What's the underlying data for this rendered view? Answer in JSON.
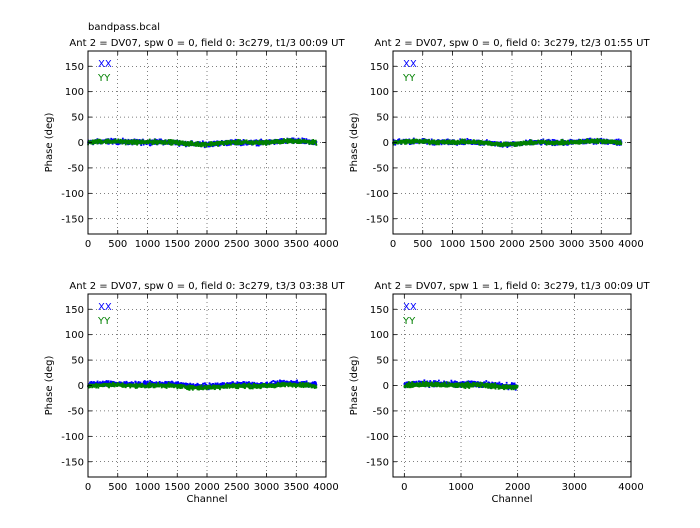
{
  "figure_title": "bandpass.bcal",
  "chart_data": [
    {
      "type": "scatter",
      "title": "Ant 2 = DV07,  spw 0 = 0,  field 0: 3c279,  t1/3  00:09 UT",
      "xlabel": "",
      "ylabel": "Phase (deg)",
      "xlim": [
        0,
        4000
      ],
      "ylim": [
        -180,
        180
      ],
      "xticks": [
        0,
        500,
        1000,
        1500,
        2000,
        2500,
        3000,
        3500,
        4000
      ],
      "yticks": [
        -150,
        -100,
        -50,
        0,
        50,
        100,
        150
      ],
      "grid": true,
      "legend_position": "top-left",
      "series": [
        {
          "name": "XX",
          "color": "#0000ff",
          "x_range": [
            0,
            3840
          ],
          "center": 0,
          "spread": 7
        },
        {
          "name": "YY",
          "color": "#008000",
          "x_range": [
            0,
            3840
          ],
          "center": 0,
          "spread": 6
        }
      ]
    },
    {
      "type": "scatter",
      "title": "Ant 2 = DV07,  spw 0 = 0,  field 0: 3c279,  t2/3  01:55 UT",
      "xlabel": "",
      "ylabel": "Phase (deg)",
      "xlim": [
        0,
        4000
      ],
      "ylim": [
        -180,
        180
      ],
      "xticks": [
        0,
        500,
        1000,
        1500,
        2000,
        2500,
        3000,
        3500,
        4000
      ],
      "yticks": [
        -150,
        -100,
        -50,
        0,
        50,
        100,
        150
      ],
      "grid": true,
      "legend_position": "top-left",
      "series": [
        {
          "name": "XX",
          "color": "#0000ff",
          "x_range": [
            0,
            3840
          ],
          "center": 0,
          "spread": 7
        },
        {
          "name": "YY",
          "color": "#008000",
          "x_range": [
            0,
            3840
          ],
          "center": 0,
          "spread": 6
        }
      ]
    },
    {
      "type": "scatter",
      "title": "Ant 2 = DV07,  spw 0 = 0,  field 0: 3c279,  t3/3  03:38 UT",
      "xlabel": "Channel",
      "ylabel": "Phase (deg)",
      "xlim": [
        0,
        4000
      ],
      "ylim": [
        -180,
        180
      ],
      "xticks": [
        0,
        500,
        1000,
        1500,
        2000,
        2500,
        3000,
        3500,
        4000
      ],
      "yticks": [
        -150,
        -100,
        -50,
        0,
        50,
        100,
        150
      ],
      "grid": true,
      "legend_position": "top-left",
      "series": [
        {
          "name": "XX",
          "color": "#0000ff",
          "x_range": [
            0,
            3840
          ],
          "center": 2,
          "spread": 7
        },
        {
          "name": "YY",
          "color": "#008000",
          "x_range": [
            0,
            3840
          ],
          "center": -1,
          "spread": 6
        }
      ]
    },
    {
      "type": "scatter",
      "title": "Ant 2 = DV07,  spw 1 = 1,  field 0: 3c279,  t1/3  00:09 UT",
      "xlabel": "Channel",
      "ylabel": "Phase (deg)",
      "xlim": [
        -200,
        4000
      ],
      "ylim": [
        -180,
        180
      ],
      "xticks": [
        0,
        1000,
        2000,
        3000,
        4000
      ],
      "yticks": [
        -150,
        -100,
        -50,
        0,
        50,
        100,
        150
      ],
      "grid": true,
      "legend_position": "top-left",
      "series": [
        {
          "name": "XX",
          "color": "#0000ff",
          "x_range": [
            0,
            2000
          ],
          "center": 2,
          "spread": 8
        },
        {
          "name": "YY",
          "color": "#008000",
          "x_range": [
            0,
            2000
          ],
          "center": 0,
          "spread": 7
        }
      ]
    }
  ]
}
